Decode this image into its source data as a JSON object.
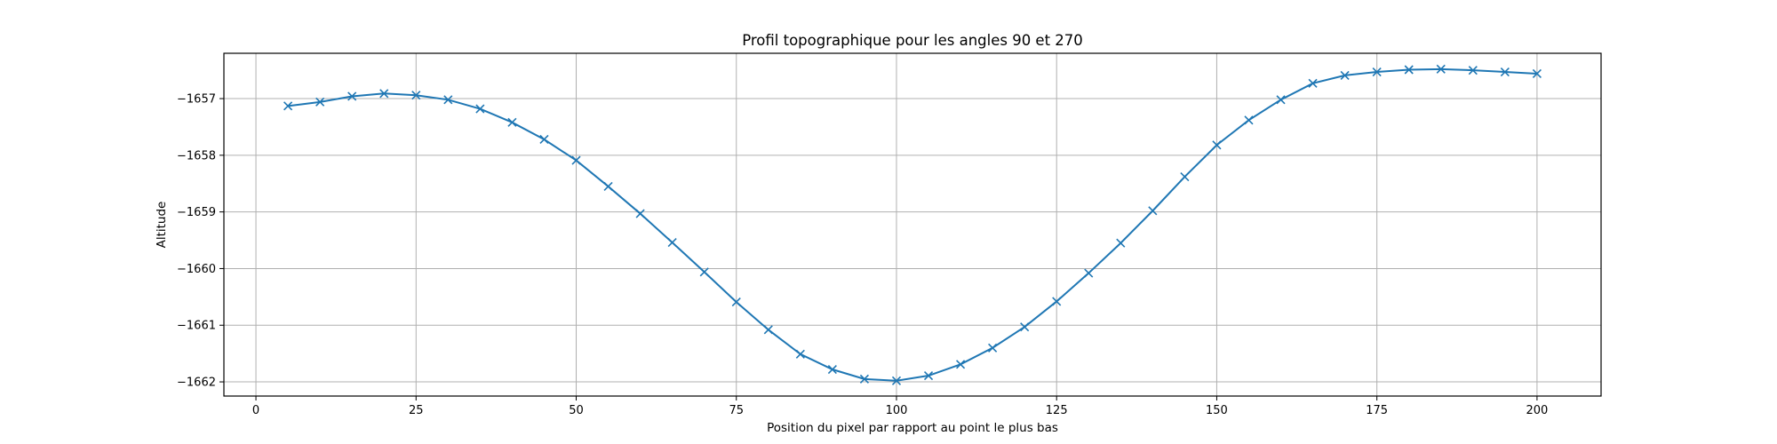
{
  "chart_data": {
    "type": "line",
    "title": "Profil topographique pour les angles 90 et 270",
    "xlabel": "Position du pixel par rapport au point le plus bas",
    "ylabel": "Altitude",
    "xlim": [
      -5,
      210
    ],
    "ylim": [
      -1662.25,
      -1656.2
    ],
    "xticks": [
      0,
      25,
      50,
      75,
      100,
      125,
      150,
      175,
      200
    ],
    "yticks": [
      -1662,
      -1661,
      -1660,
      -1659,
      -1658,
      -1657
    ],
    "xtick_labels": [
      "0",
      "25",
      "50",
      "75",
      "100",
      "125",
      "150",
      "175",
      "200"
    ],
    "ytick_labels": [
      "−1662",
      "−1661",
      "−1660",
      "−1659",
      "−1658",
      "−1657"
    ],
    "grid": true,
    "marker": "x",
    "color": "#1f77b4",
    "series": [
      {
        "x": [
          5,
          10,
          15,
          20,
          25,
          30,
          35,
          40,
          45,
          50,
          55,
          60,
          65,
          70,
          75,
          80,
          85,
          90,
          95,
          100,
          105,
          110,
          115,
          120,
          125,
          130,
          135,
          140,
          145,
          150,
          155,
          160,
          165,
          170,
          175,
          180,
          185,
          190,
          195,
          200
        ],
        "values": [
          -1657.13,
          -1657.06,
          -1656.96,
          -1656.91,
          -1656.94,
          -1657.02,
          -1657.18,
          -1657.42,
          -1657.72,
          -1658.09,
          -1658.55,
          -1659.03,
          -1659.54,
          -1660.06,
          -1660.59,
          -1661.08,
          -1661.51,
          -1661.78,
          -1661.95,
          -1661.98,
          -1661.89,
          -1661.69,
          -1661.4,
          -1661.03,
          -1660.58,
          -1660.08,
          -1659.55,
          -1658.98,
          -1658.38,
          -1657.82,
          -1657.38,
          -1657.02,
          -1656.73,
          -1656.59,
          -1656.53,
          -1656.49,
          -1656.48,
          -1656.5,
          -1656.53,
          -1656.56
        ]
      }
    ]
  }
}
